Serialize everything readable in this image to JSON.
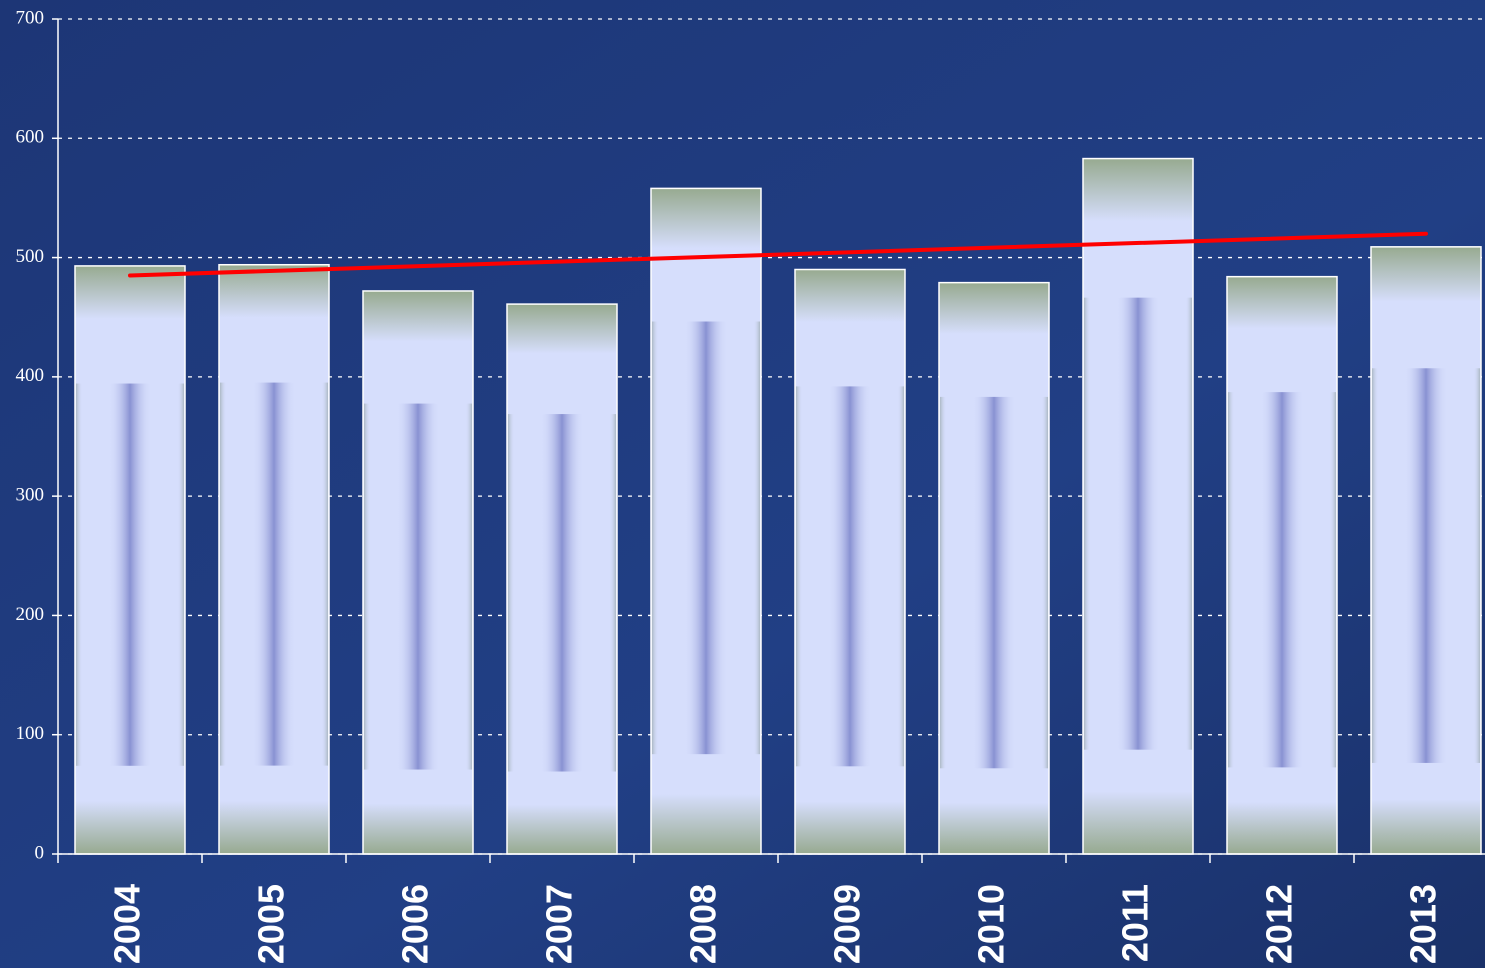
{
  "chart_data": {
    "type": "bar",
    "categories": [
      "2004",
      "2005",
      "2006",
      "2007",
      "2008",
      "2009",
      "2010",
      "2011",
      "2012",
      "2013"
    ],
    "values": [
      493,
      494,
      472,
      461,
      558,
      490,
      479,
      583,
      484,
      509
    ],
    "color": "#d6defc",
    "ylim": [
      0,
      700
    ],
    "yticks": [
      0,
      100,
      200,
      300,
      400,
      500,
      600,
      700
    ],
    "grid": true,
    "trendline": {
      "color": "#ff0000",
      "start": 485,
      "end": 520
    }
  }
}
